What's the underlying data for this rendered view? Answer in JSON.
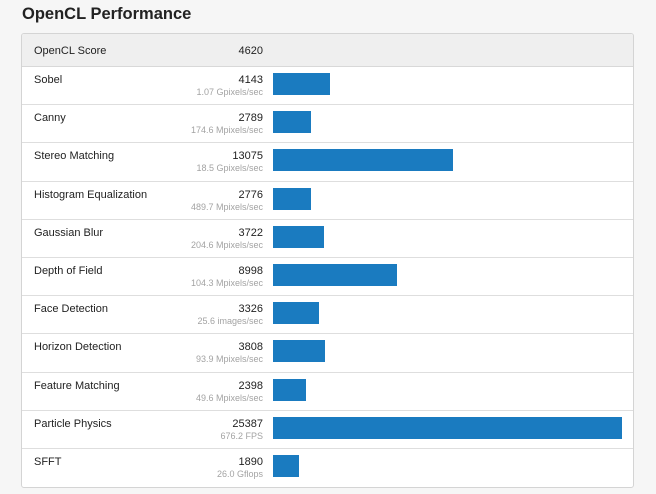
{
  "header": {
    "title": "OpenCL Performance"
  },
  "summary": {
    "label": "OpenCL Score",
    "value": "4620"
  },
  "scale_max": 25387,
  "colors": {
    "bar": "#1a7bc0",
    "rate_text": "#a3a3a3"
  },
  "benchmarks": [
    {
      "name": "Sobel",
      "score": "4143",
      "score_value": 4143,
      "rate": "1.07 Gpixels/sec"
    },
    {
      "name": "Canny",
      "score": "2789",
      "score_value": 2789,
      "rate": "174.6 Mpixels/sec"
    },
    {
      "name": "Stereo Matching",
      "score": "13075",
      "score_value": 13075,
      "rate": "18.5 Gpixels/sec"
    },
    {
      "name": "Histogram Equalization",
      "score": "2776",
      "score_value": 2776,
      "rate": "489.7 Mpixels/sec"
    },
    {
      "name": "Gaussian Blur",
      "score": "3722",
      "score_value": 3722,
      "rate": "204.6 Mpixels/sec"
    },
    {
      "name": "Depth of Field",
      "score": "8998",
      "score_value": 8998,
      "rate": "104.3 Mpixels/sec"
    },
    {
      "name": "Face Detection",
      "score": "3326",
      "score_value": 3326,
      "rate": "25.6 images/sec"
    },
    {
      "name": "Horizon Detection",
      "score": "3808",
      "score_value": 3808,
      "rate": "93.9 Mpixels/sec"
    },
    {
      "name": "Feature Matching",
      "score": "2398",
      "score_value": 2398,
      "rate": "49.6 Mpixels/sec"
    },
    {
      "name": "Particle Physics",
      "score": "25387",
      "score_value": 25387,
      "rate": "676.2 FPS"
    },
    {
      "name": "SFFT",
      "score": "1890",
      "score_value": 1890,
      "rate": "26.0 Gflops"
    }
  ]
}
